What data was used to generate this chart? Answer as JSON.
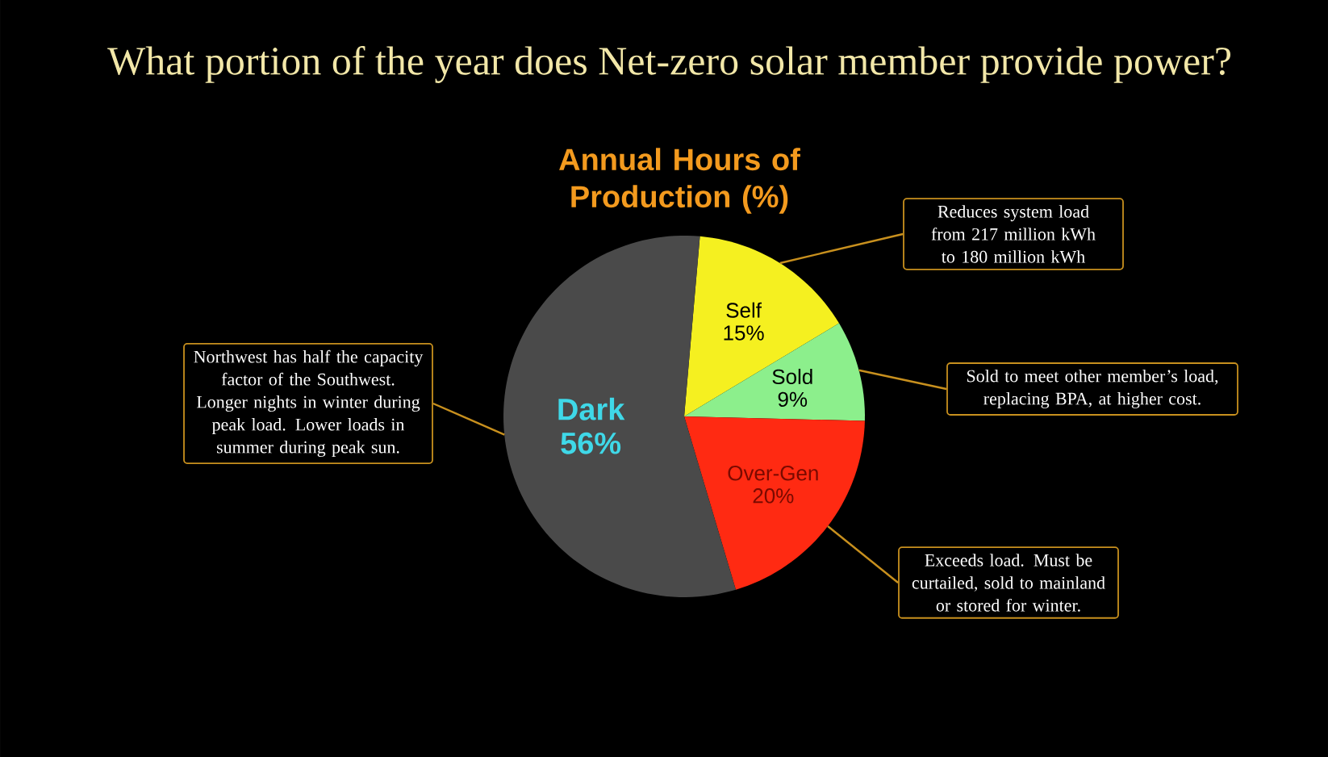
{
  "chart_data": {
    "type": "pie",
    "title": "What portion of the year does Net-zero solar member provide power?",
    "subtitle": "Annual Hours of Production (%)",
    "categories": [
      "Self",
      "Sold",
      "Over-Gen",
      "Dark"
    ],
    "values": [
      15,
      9,
      20,
      56
    ],
    "colors": [
      "#f5f020",
      "#8cef8c",
      "#ff2a12",
      "#4a4a4a"
    ],
    "value_labels": [
      "15%",
      "9%",
      "20%",
      "56%"
    ],
    "annotations": [
      "Reduces system load from 217 million kWh to 180 million kWh",
      "Sold to meet other member’s load, replacing BPA, at higher cost.",
      "Exceeds load. Must be curtailed, sold to mainland or stored for winter.",
      "Northwest has half the capacity factor of the Southwest. Longer nights in winter during peak load. Lower loads in summer during peak sun."
    ]
  }
}
